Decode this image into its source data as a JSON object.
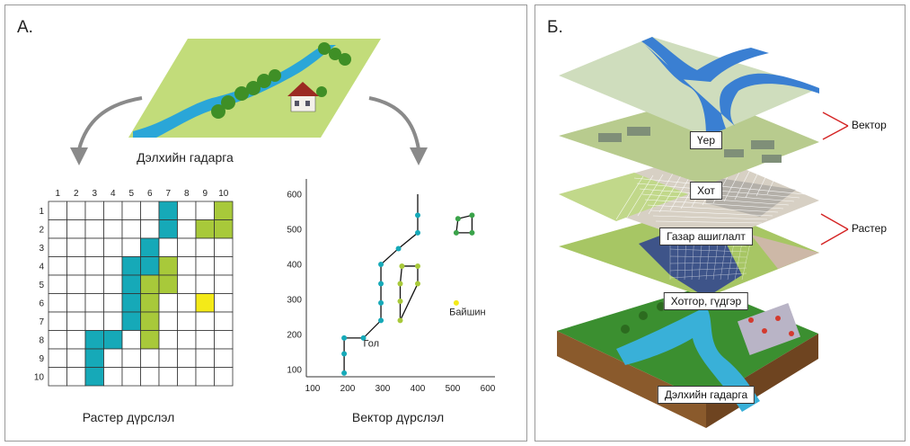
{
  "panel_a": {
    "label": "А.",
    "surface_caption": "Дэлхийн гадарга",
    "raster_caption": "Растер дүрслэл",
    "vector_caption": "Вектор дүрслэл",
    "raster": {
      "col_labels": [
        "1",
        "2",
        "3",
        "4",
        "5",
        "6",
        "7",
        "8",
        "9",
        "10"
      ],
      "row_labels": [
        "1",
        "2",
        "3",
        "4",
        "5",
        "6",
        "7",
        "8",
        "9",
        "10"
      ],
      "teal_cells": [
        [
          1,
          7
        ],
        [
          2,
          7
        ],
        [
          3,
          6
        ],
        [
          4,
          5
        ],
        [
          4,
          6
        ],
        [
          5,
          5
        ],
        [
          6,
          5
        ],
        [
          7,
          5
        ],
        [
          8,
          3
        ],
        [
          8,
          4
        ],
        [
          9,
          3
        ],
        [
          10,
          3
        ]
      ],
      "green_cells": [
        [
          1,
          10
        ],
        [
          2,
          9
        ],
        [
          2,
          10
        ],
        [
          4,
          7
        ],
        [
          5,
          6
        ],
        [
          5,
          7
        ],
        [
          6,
          6
        ],
        [
          7,
          6
        ],
        [
          8,
          6
        ]
      ],
      "yellow_cells": [
        [
          6,
          9
        ]
      ],
      "colors": {
        "teal": "#16a9b8",
        "green": "#a8c93a",
        "yellow": "#f4ea18"
      }
    },
    "vector": {
      "x_ticks": [
        "100",
        "200",
        "300",
        "400",
        "500",
        "600"
      ],
      "y_ticks": [
        "100",
        "200",
        "300",
        "400",
        "500",
        "600"
      ],
      "river_label": "Гол",
      "lake_label": "Байшин",
      "river_points": [
        [
          190,
          90
        ],
        [
          190,
          145
        ],
        [
          190,
          190
        ],
        [
          245,
          190
        ],
        [
          295,
          240
        ],
        [
          295,
          290
        ],
        [
          295,
          345
        ],
        [
          295,
          400
        ],
        [
          345,
          445
        ],
        [
          400,
          490
        ],
        [
          400,
          540
        ],
        [
          400,
          600
        ]
      ],
      "field_points": [
        [
          350,
          240
        ],
        [
          350,
          295
        ],
        [
          350,
          345
        ],
        [
          355,
          395
        ],
        [
          400,
          395
        ],
        [
          400,
          345
        ],
        [
          350,
          240
        ]
      ],
      "house_points": [
        [
          510,
          490
        ],
        [
          515,
          530
        ],
        [
          555,
          540
        ],
        [
          555,
          490
        ],
        [
          510,
          490
        ]
      ],
      "point": [
        510,
        290
      ]
    }
  },
  "panel_b": {
    "label": "Б.",
    "layers": [
      "Үер",
      "Хот",
      "Газар ашиглалт",
      "Хотгор, гүдгэр",
      "Дэлхийн гадарга"
    ],
    "vector_label": "Вектор",
    "raster_label": "Растер"
  }
}
